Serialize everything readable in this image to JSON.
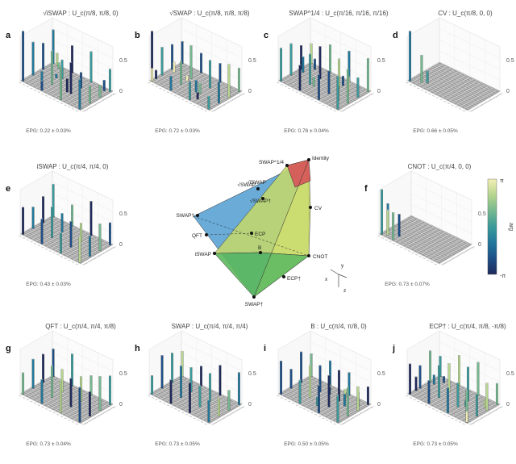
{
  "colors": {
    "cmap": [
      "#1f2a5c",
      "#1d4f87",
      "#22779b",
      "#3a9a9b",
      "#74b88f",
      "#b6d58f",
      "#f3efb4"
    ],
    "floor_fill": "#9c9c9c",
    "floor_grid": "#f4f4f4",
    "tetra_blue": "#5aa2d3",
    "tetra_green": "#5cb85c",
    "tetra_yellow": "#ecec9a",
    "tetra_red": "#d65a5a",
    "tetra_lime": "#c4d867"
  },
  "panels": [
    {
      "letter": "a",
      "title": "√iSWAP : U_c(π/8, π/8, 0)",
      "epg": "EPG: 0.22 ± 0.03%"
    },
    {
      "letter": "b",
      "title": "√SWAP : U_c(π/8, π/8, π/8)",
      "epg": "EPG: 0.72 ± 0.03%"
    },
    {
      "letter": "c",
      "title": "SWAP^1/4 : U_c(π/16, π/16, π/16)",
      "epg": "EPG: 0.78 ± 0.04%"
    },
    {
      "letter": "d",
      "title": "CV : U_c(π/8, 0, 0)",
      "epg": "EPG: 0.66 ± 0.05%"
    },
    {
      "letter": "e",
      "title": "iSWAP : U_c(π/4, π/4, 0)",
      "epg": "EPG: 0.43 ± 0.03%"
    },
    {
      "letter": "f",
      "title": "CNOT : U_c(π/4, 0, 0)",
      "epg": "EPG: 0.73 ± 0.07%"
    },
    {
      "letter": "g",
      "title": "QFT : U_c(π/4, π/4, π/8)",
      "epg": "EPG: 0.73 ± 0.04%"
    },
    {
      "letter": "h",
      "title": "SWAP : U_c(π/4, π/4, π/4)",
      "epg": "EPG: 0.73 ± 0.05%"
    },
    {
      "letter": "i",
      "title": "B : U_c(π/4, π/8, 0)",
      "epg": "EPG: 0.50 ± 0.05%"
    },
    {
      "letter": "j",
      "title": "ECP† : U_c(π/4, π/8, -π/8)",
      "epg": "EPG: 0.73 ± 0.05%"
    }
  ],
  "axis": {
    "z_ticks": [
      "0.5",
      "0"
    ]
  },
  "tetra": {
    "labels": [
      "SWAP^1/4",
      "Identity",
      "√SWAP",
      "√SWAP†",
      "SWAP†",
      "QFT",
      "ECP",
      "iSWAP",
      "B",
      "CV",
      "CNOT",
      "ECP†",
      "SWAP†",
      "√iSWAP"
    ],
    "axes_letters": [
      "x",
      "y",
      "z"
    ]
  },
  "colorbar": {
    "top": "π",
    "bottom": "-π",
    "label": "arg"
  },
  "chart_data": {
    "type": "bar3d",
    "description_units": "process-matrix element magnitude (0-1), colour = phase (arg)",
    "z_range": [
      0,
      1
    ],
    "grid": "16x16",
    "panels": [
      {
        "gate": "√iSWAP",
        "z_ticks": [
          0,
          0.5
        ]
      },
      {
        "gate": "√SWAP",
        "z_ticks": [
          0,
          0.5
        ]
      },
      {
        "gate": "SWAP^1/4",
        "z_ticks": [
          0,
          0.5
        ]
      },
      {
        "gate": "CV",
        "z_ticks": [
          0,
          0.5
        ]
      },
      {
        "gate": "iSWAP",
        "z_ticks": [
          0,
          0.5
        ]
      },
      {
        "gate": "CNOT",
        "z_ticks": [
          0,
          0.5
        ]
      },
      {
        "gate": "QFT",
        "z_ticks": [
          0,
          0.5
        ]
      },
      {
        "gate": "SWAP",
        "z_ticks": [
          0,
          0.5
        ]
      },
      {
        "gate": "B",
        "z_ticks": [
          0,
          0.5
        ]
      },
      {
        "gate": "ECP†",
        "z_ticks": [
          0,
          0.5
        ]
      }
    ],
    "colorbar_range": [
      "-π",
      "π"
    ]
  }
}
